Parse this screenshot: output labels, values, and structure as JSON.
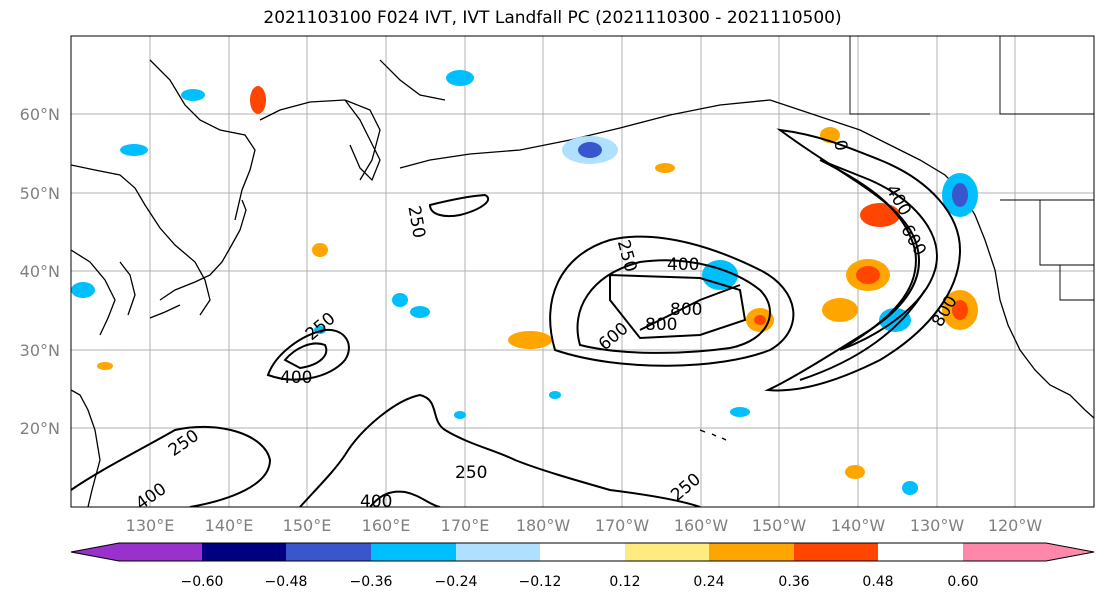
{
  "title": "2021103100 F024 IVT, IVT Landfall PC (2021110300 - 2021110500)",
  "lat_ticks": [
    "60°N",
    "50°N",
    "40°N",
    "30°N",
    "20°N"
  ],
  "lon_ticks": [
    "130°E",
    "140°E",
    "150°E",
    "160°E",
    "170°E",
    "180°W",
    "170°W",
    "160°W",
    "150°W",
    "140°W",
    "130°W",
    "120°W"
  ],
  "contour_labels": [
    "250",
    "400",
    "250",
    "400",
    "250",
    "400",
    "250",
    "400",
    "250",
    "600",
    "800",
    "400",
    "600",
    "800",
    "800"
  ],
  "colorbar": {
    "ticks": [
      "−0.60",
      "−0.48",
      "−0.36",
      "−0.24",
      "−0.12",
      "0.12",
      "0.24",
      "0.36",
      "0.48",
      "0.60"
    ],
    "colors": [
      "#9932cc",
      "#000080",
      "#3a56cc",
      "#00bfff",
      "#b0e0ff",
      "#ffffff",
      "#ffeb80",
      "#ffa500",
      "#ff4500",
      "#b22222",
      "#ff88aa"
    ]
  }
}
